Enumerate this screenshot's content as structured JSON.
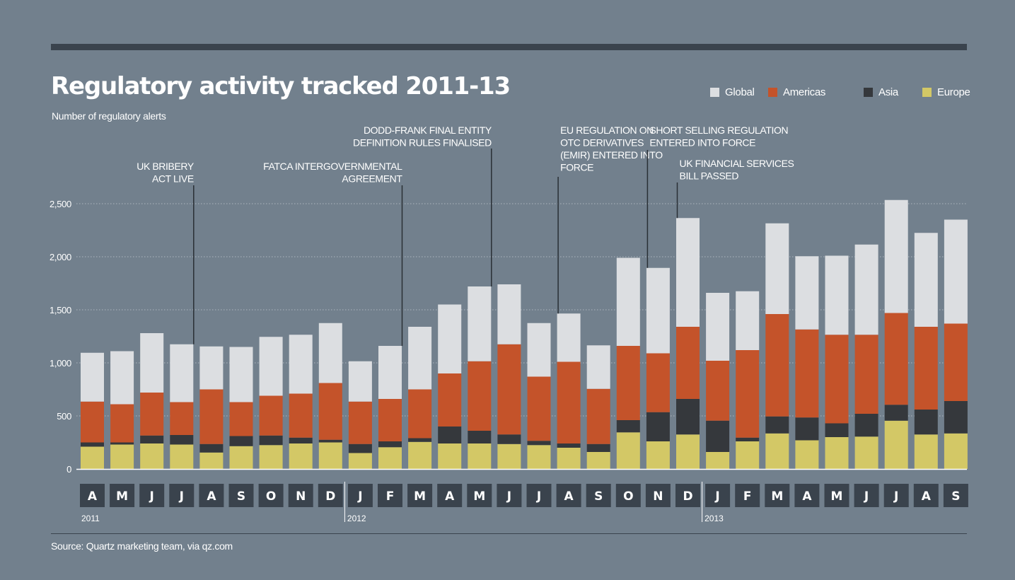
{
  "header": {
    "title": "Regulatory activity tracked 2011-13",
    "subtitle": "Number of regulatory alerts"
  },
  "legend": [
    {
      "name": "Global",
      "color": "#dcdee1"
    },
    {
      "name": "Americas",
      "color": "#c4532a"
    },
    {
      "name": "Asia",
      "color": "#35383c"
    },
    {
      "name": "Europe",
      "color": "#d3c866"
    }
  ],
  "footer": {
    "source": "Source: Quartz marketing team, via qz.com"
  },
  "chart_data": {
    "type": "bar",
    "stacked": true,
    "title": "Regulatory activity tracked 2011-13",
    "subtitle": "Number of regulatory alerts",
    "ylim": [
      0,
      2500
    ],
    "yticks": [
      0,
      500,
      1000,
      1500,
      2000,
      2500
    ],
    "ytick_labels": [
      "0",
      "500",
      "1,000",
      "1,500",
      "2,000",
      "2,500"
    ],
    "grid": true,
    "legend_position": "top-right",
    "categories": [
      "A",
      "M",
      "J",
      "J",
      "A",
      "S",
      "O",
      "N",
      "D",
      "J",
      "F",
      "M",
      "A",
      "M",
      "J",
      "J",
      "A",
      "S",
      "O",
      "N",
      "D",
      "J",
      "F",
      "M",
      "A",
      "M",
      "J",
      "J",
      "A",
      "S"
    ],
    "years": [
      {
        "label": "2011",
        "start_index": 0
      },
      {
        "label": "2012",
        "start_index": 9
      },
      {
        "label": "2013",
        "start_index": 21
      }
    ],
    "series": [
      {
        "name": "Europe",
        "color": "#d3c866",
        "values": [
          210,
          230,
          240,
          230,
          155,
          215,
          225,
          240,
          250,
          150,
          205,
          255,
          240,
          240,
          235,
          225,
          200,
          160,
          345,
          260,
          325,
          160,
          260,
          335,
          270,
          300,
          305,
          455,
          325,
          335
        ]
      },
      {
        "name": "Asia",
        "color": "#35383c",
        "values": [
          40,
          20,
          75,
          90,
          80,
          95,
          90,
          55,
          25,
          85,
          55,
          35,
          160,
          120,
          90,
          40,
          40,
          75,
          115,
          275,
          335,
          295,
          35,
          160,
          215,
          130,
          215,
          150,
          235,
          305
        ]
      },
      {
        "name": "Americas",
        "color": "#c4532a",
        "values": [
          385,
          360,
          405,
          310,
          515,
          320,
          375,
          415,
          535,
          400,
          400,
          460,
          500,
          655,
          850,
          605,
          770,
          520,
          700,
          555,
          680,
          565,
          825,
          965,
          830,
          835,
          745,
          865,
          780,
          730
        ]
      },
      {
        "name": "Global",
        "color": "#dcdee1",
        "values": [
          460,
          500,
          560,
          545,
          405,
          520,
          555,
          555,
          565,
          380,
          500,
          590,
          650,
          705,
          565,
          505,
          455,
          410,
          830,
          805,
          1025,
          640,
          555,
          855,
          690,
          745,
          850,
          1065,
          885,
          980
        ]
      }
    ],
    "annotations": [
      {
        "lines": [
          "UK BRIBERY",
          "ACT LIVE"
        ],
        "bar_index": 3
      },
      {
        "lines": [
          "FATCA INTERGOVERNMENTAL",
          "AGREEMENT"
        ],
        "bar_index": 10
      },
      {
        "lines": [
          "DODD-FRANK FINAL ENTITY",
          "DEFINITION RULES FINALISED"
        ],
        "bar_index": 13
      },
      {
        "lines": [
          "EU REGULATION ON",
          "OTC DERIVATIVES",
          "(EMIR) ENTERED INTO",
          "FORCE"
        ],
        "bar_index": 16
      },
      {
        "lines": [
          "SHORT SELLING REGULATION",
          "ENTERED INTO FORCE"
        ],
        "bar_index": 19
      },
      {
        "lines": [
          "UK FINANCIAL SERVICES",
          "BILL PASSED"
        ],
        "bar_index": 20
      }
    ]
  }
}
